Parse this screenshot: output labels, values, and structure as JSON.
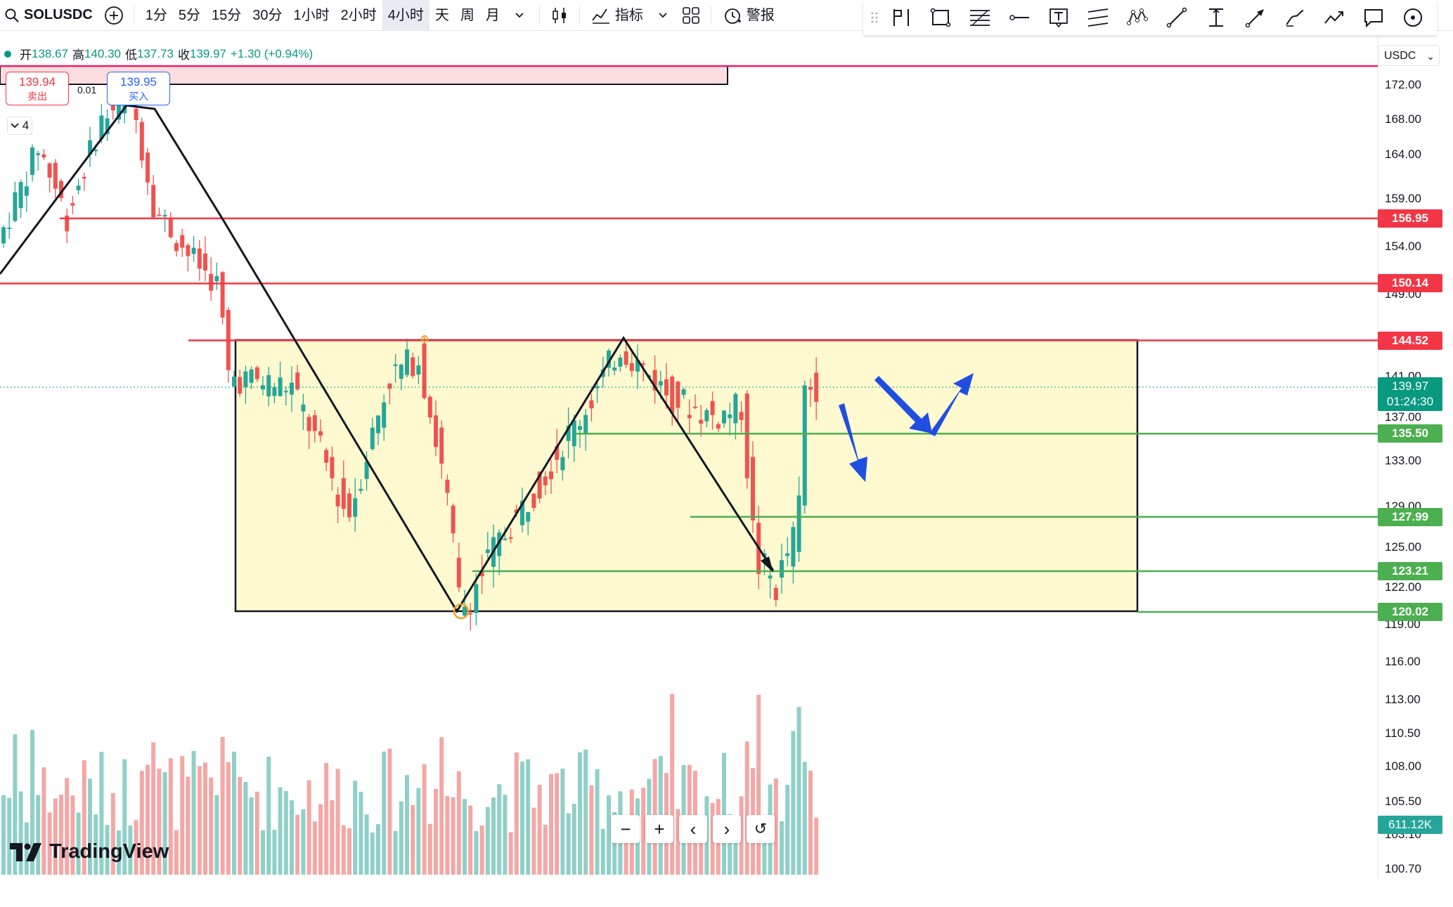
{
  "toolbar": {
    "symbol": "SOLUSDC",
    "intervals": [
      "1分",
      "5分",
      "15分",
      "30分",
      "1小时",
      "2小时",
      "4小时",
      "天",
      "周",
      "月"
    ],
    "active_interval": "4小时",
    "indicators_label": "指标",
    "alert_label": "警报"
  },
  "legend": {
    "open_label": "开",
    "open": "138.67",
    "high_label": "高",
    "high": "140.30",
    "low_label": "低",
    "low": "137.73",
    "close_label": "收",
    "close": "139.97",
    "change": "+1.30 (+0.94%)"
  },
  "trade": {
    "sell_price": "139.94",
    "sell_label": "卖出",
    "buy_price": "139.95",
    "buy_label": "买入",
    "spread": "0.01"
  },
  "collapse_count": "4",
  "currency": "USDC",
  "price_axis": [
    "172.00",
    "168.00",
    "164.00",
    "159.00",
    "154.00",
    "149.00",
    "141.00",
    "137.00",
    "133.00",
    "129.00",
    "125.00",
    "122.00",
    "119.00",
    "116.00",
    "113.00",
    "110.50",
    "108.00",
    "105.50",
    "103.10",
    "100.70"
  ],
  "levels": [
    {
      "price": "156.95",
      "color": "#f23645"
    },
    {
      "price": "150.14",
      "color": "#f23645"
    },
    {
      "price": "144.52",
      "color": "#f23645"
    },
    {
      "price": "135.50",
      "color": "#4caf50"
    },
    {
      "price": "127.99",
      "color": "#4caf50"
    },
    {
      "price": "123.21",
      "color": "#4caf50"
    },
    {
      "price": "120.02",
      "color": "#4caf50"
    }
  ],
  "current": {
    "price": "139.97",
    "countdown": "01:24:30"
  },
  "volume_label": "611.12K",
  "zoom_controls": [
    "−",
    "+",
    "‹",
    "›",
    "↺"
  ],
  "brand": "TradingView",
  "colors": {
    "up": "#26a69a",
    "down": "#ef5350",
    "resistance": "#f23645",
    "support": "#4caf50",
    "range_fill": "#fff9d0",
    "arrow": "#1e4fe0"
  }
}
